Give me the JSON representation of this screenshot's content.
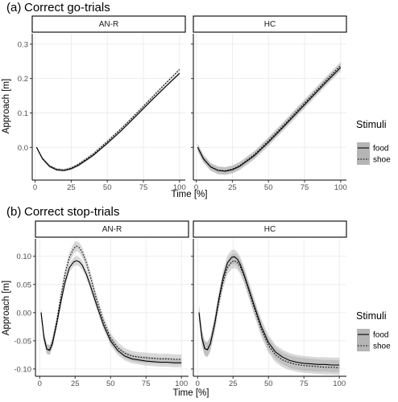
{
  "chart_data": [
    {
      "type": "line",
      "tag": "(a)",
      "title": "Correct go-trials",
      "xlabel": "Time [%]",
      "ylabel": "Approach [m]",
      "xlim": [
        -2,
        104
      ],
      "ylim": [
        -0.095,
        0.33
      ],
      "x_ticks": [
        0,
        25,
        50,
        75,
        100
      ],
      "x_tick_labels": [
        "0",
        "25",
        "50",
        "75",
        "100"
      ],
      "y_ticks": [
        0.0,
        0.1,
        0.2,
        0.3
      ],
      "y_tick_labels": [
        "0.0",
        "0.1",
        "0.2",
        "0.3"
      ],
      "legend": {
        "title": "Stimuli",
        "position": "right",
        "entries": [
          "food",
          "shoe"
        ]
      },
      "facets": [
        {
          "label": "AN-R",
          "series": [
            {
              "name": "food",
              "linestyle": "solid",
              "x": [
                1,
                5,
                10,
                15,
                20,
                25,
                30,
                40,
                50,
                60,
                70,
                80,
                90,
                100
              ],
              "y": [
                0.0,
                -0.032,
                -0.055,
                -0.065,
                -0.067,
                -0.062,
                -0.052,
                -0.024,
                0.012,
                0.05,
                0.092,
                0.134,
                0.175,
                0.215
              ],
              "ci_halfwidth": 0.004
            },
            {
              "name": "shoe",
              "linestyle": "dotted",
              "x": [
                1,
                5,
                10,
                15,
                20,
                25,
                30,
                40,
                50,
                60,
                70,
                80,
                90,
                100
              ],
              "y": [
                0.0,
                -0.032,
                -0.054,
                -0.064,
                -0.066,
                -0.06,
                -0.049,
                -0.02,
                0.017,
                0.056,
                0.098,
                0.141,
                0.184,
                0.226
              ],
              "ci_halfwidth": 0.004
            }
          ]
        },
        {
          "label": "HC",
          "series": [
            {
              "name": "food",
              "linestyle": "solid",
              "x": [
                1,
                5,
                10,
                15,
                20,
                25,
                30,
                40,
                50,
                60,
                70,
                80,
                90,
                100
              ],
              "y": [
                0.0,
                -0.033,
                -0.057,
                -0.067,
                -0.069,
                -0.065,
                -0.055,
                -0.025,
                0.015,
                0.058,
                0.102,
                0.146,
                0.19,
                0.232
              ],
              "ci_halfwidth": 0.011
            },
            {
              "name": "shoe",
              "linestyle": "dotted",
              "x": [
                1,
                5,
                10,
                15,
                20,
                25,
                30,
                40,
                50,
                60,
                70,
                80,
                90,
                100
              ],
              "y": [
                0.0,
                -0.033,
                -0.056,
                -0.066,
                -0.068,
                -0.063,
                -0.053,
                -0.022,
                0.019,
                0.062,
                0.107,
                0.151,
                0.195,
                0.238
              ],
              "ci_halfwidth": 0.011
            }
          ]
        }
      ]
    },
    {
      "type": "line",
      "tag": "(b)",
      "title": "Correct stop-trials",
      "xlabel": "Time [%]",
      "ylabel": "Approach [m]",
      "xlim": [
        -3,
        105
      ],
      "ylim": [
        -0.113,
        0.131
      ],
      "x_ticks": [
        0,
        25,
        50,
        75,
        100
      ],
      "x_tick_labels": [
        "0",
        "25",
        "50",
        "75",
        "100"
      ],
      "y_ticks": [
        -0.1,
        -0.05,
        0.0,
        0.05,
        0.1
      ],
      "y_tick_labels": [
        "-0.10",
        "-0.05",
        "0.00",
        "0.05",
        "0.10"
      ],
      "legend": {
        "title": "Stimuli",
        "position": "right",
        "entries": [
          "food",
          "shoe"
        ]
      },
      "facets": [
        {
          "label": "AN-R",
          "series": [
            {
              "name": "food",
              "linestyle": "solid",
              "x": [
                1,
                3,
                5,
                7,
                9,
                12,
                15,
                18,
                21,
                24,
                26,
                28,
                30,
                33,
                36,
                40,
                45,
                50,
                55,
                60,
                65,
                70,
                75,
                80,
                85,
                90,
                95,
                100
              ],
              "y": [
                0.0,
                -0.045,
                -0.065,
                -0.067,
                -0.055,
                -0.02,
                0.02,
                0.055,
                0.08,
                0.09,
                0.092,
                0.09,
                0.084,
                0.068,
                0.046,
                0.015,
                -0.022,
                -0.05,
                -0.067,
                -0.077,
                -0.082,
                -0.084,
                -0.086,
                -0.087,
                -0.088,
                -0.088,
                -0.089,
                -0.089
              ],
              "ci_halfwidth": 0.008
            },
            {
              "name": "shoe",
              "linestyle": "dotted",
              "x": [
                1,
                3,
                5,
                7,
                9,
                12,
                15,
                18,
                21,
                24,
                26,
                28,
                30,
                33,
                36,
                40,
                45,
                50,
                55,
                60,
                65,
                70,
                75,
                80,
                85,
                90,
                95,
                100
              ],
              "y": [
                0.0,
                -0.044,
                -0.064,
                -0.066,
                -0.052,
                -0.015,
                0.03,
                0.07,
                0.098,
                0.114,
                0.118,
                0.115,
                0.107,
                0.088,
                0.062,
                0.025,
                -0.015,
                -0.045,
                -0.062,
                -0.072,
                -0.077,
                -0.079,
                -0.08,
                -0.081,
                -0.082,
                -0.082,
                -0.083,
                -0.083
              ],
              "ci_halfwidth": 0.009
            }
          ]
        },
        {
          "label": "HC",
          "series": [
            {
              "name": "food",
              "linestyle": "solid",
              "x": [
                1,
                3,
                5,
                7,
                9,
                12,
                15,
                18,
                21,
                24,
                26,
                28,
                30,
                33,
                36,
                40,
                45,
                50,
                55,
                60,
                65,
                70,
                75,
                80,
                85,
                90,
                95,
                100
              ],
              "y": [
                0.0,
                -0.045,
                -0.064,
                -0.066,
                -0.055,
                -0.02,
                0.025,
                0.062,
                0.088,
                0.098,
                0.099,
                0.095,
                0.086,
                0.066,
                0.043,
                0.012,
                -0.025,
                -0.053,
                -0.07,
                -0.079,
                -0.085,
                -0.088,
                -0.09,
                -0.091,
                -0.092,
                -0.092,
                -0.093,
                -0.093
              ],
              "ci_halfwidth": 0.013
            },
            {
              "name": "shoe",
              "linestyle": "dotted",
              "x": [
                1,
                3,
                5,
                7,
                9,
                12,
                15,
                18,
                21,
                24,
                26,
                28,
                30,
                33,
                36,
                40,
                45,
                50,
                55,
                60,
                65,
                70,
                75,
                80,
                85,
                90,
                95,
                100
              ],
              "y": [
                0.0,
                -0.044,
                -0.063,
                -0.065,
                -0.055,
                -0.022,
                0.02,
                0.055,
                0.08,
                0.09,
                0.092,
                0.089,
                0.082,
                0.064,
                0.04,
                0.008,
                -0.03,
                -0.058,
                -0.075,
                -0.084,
                -0.089,
                -0.092,
                -0.094,
                -0.095,
                -0.096,
                -0.097,
                -0.097,
                -0.098
              ],
              "ci_halfwidth": 0.013
            }
          ]
        }
      ]
    }
  ]
}
